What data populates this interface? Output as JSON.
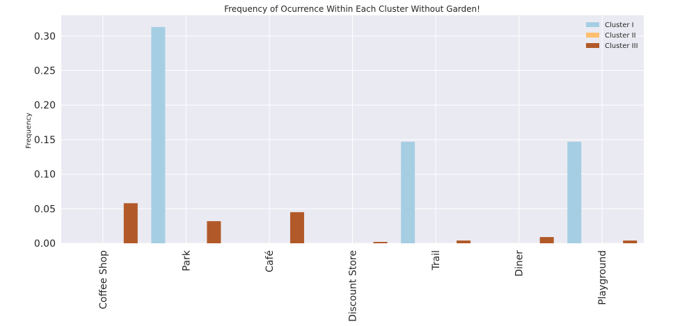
{
  "chart_data": {
    "type": "bar",
    "title": "Frequency of Ocurrence Within Each Cluster Without Garden!",
    "xlabel": "",
    "ylabel": "Frequency",
    "categories": [
      "Coffee Shop",
      "Park",
      "Café",
      "Discount Store",
      "Trail",
      "Diner",
      "Playground"
    ],
    "series": [
      {
        "name": "Cluster I",
        "color": "#a6cee3",
        "values": [
          0,
          0.313,
          0,
          0,
          0.147,
          0,
          0.147
        ]
      },
      {
        "name": "Cluster II",
        "color": "#fdbf6f",
        "values": [
          0,
          0,
          0,
          0,
          0,
          0,
          0
        ]
      },
      {
        "name": "Cluster III",
        "color": "#b15928",
        "values": [
          0.058,
          0.032,
          0.045,
          0.002,
          0.004,
          0.009,
          0.004
        ]
      }
    ],
    "ylim": [
      0,
      0.33
    ],
    "yticks": [
      0.0,
      0.05,
      0.1,
      0.15,
      0.2,
      0.25,
      0.3
    ],
    "ytick_labels": [
      "0.00",
      "0.05",
      "0.10",
      "0.15",
      "0.20",
      "0.25",
      "0.30"
    ],
    "grid": true,
    "background": "#eaeaf2",
    "legend_position": "top-right"
  }
}
